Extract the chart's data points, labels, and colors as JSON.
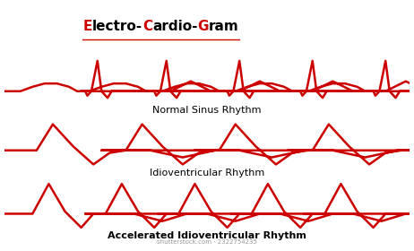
{
  "title_parts": [
    [
      "E",
      "#cc0000"
    ],
    [
      "lectro-",
      "#000000"
    ],
    [
      "C",
      "#cc0000"
    ],
    [
      "ardio-",
      "#000000"
    ],
    [
      "G",
      "#cc0000"
    ],
    [
      "ram",
      "#000000"
    ]
  ],
  "ecg_color": "#cc0000",
  "bg_color": "#ffffff",
  "label1": "Normal Sinus Rhythm",
  "label2": "Idioventricular Rhythm",
  "label3": "Accelerated Idioventricular Rhythm",
  "watermark": "shutterstock.com · 2322754235",
  "lw": 1.8
}
